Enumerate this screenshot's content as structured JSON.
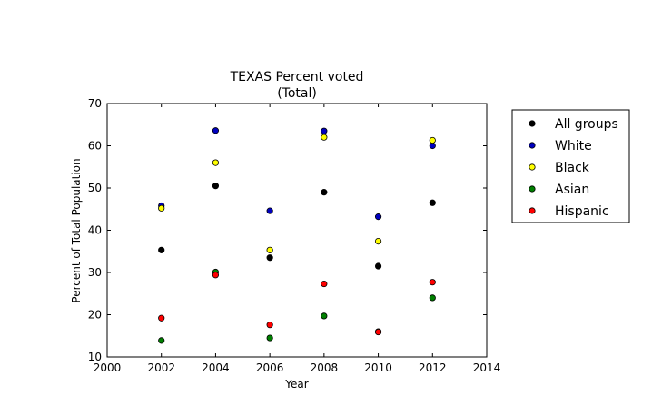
{
  "chart_data": {
    "type": "scatter",
    "title": "TEXAS Percent voted",
    "subtitle": "(Total)",
    "xlabel": "Year",
    "ylabel": "Percent of Total Population",
    "xlim": [
      2000,
      2014
    ],
    "ylim": [
      10,
      70
    ],
    "xticks": [
      2000,
      2002,
      2004,
      2006,
      2008,
      2010,
      2012,
      2014
    ],
    "yticks": [
      10,
      20,
      30,
      40,
      50,
      60,
      70
    ],
    "x": [
      2002,
      2004,
      2006,
      2008,
      2010,
      2012
    ],
    "grid": false,
    "legend_position": "right",
    "series": [
      {
        "name": "All groups",
        "color": "#000000",
        "values": [
          35.3,
          50.5,
          33.5,
          49.0,
          31.5,
          46.5
        ]
      },
      {
        "name": "White",
        "color": "#0000bf",
        "values": [
          45.8,
          63.6,
          44.6,
          63.5,
          43.2,
          60.0
        ]
      },
      {
        "name": "Black",
        "color": "#ffff00",
        "values": [
          45.2,
          56.0,
          35.3,
          62.0,
          37.4,
          61.3
        ]
      },
      {
        "name": "Asian",
        "color": "#007f00",
        "values": [
          13.9,
          30.1,
          14.5,
          19.7,
          16.0,
          24.0
        ]
      },
      {
        "name": "Hispanic",
        "color": "#ff0000",
        "values": [
          19.2,
          29.4,
          17.6,
          27.3,
          15.9,
          27.7
        ]
      }
    ]
  }
}
